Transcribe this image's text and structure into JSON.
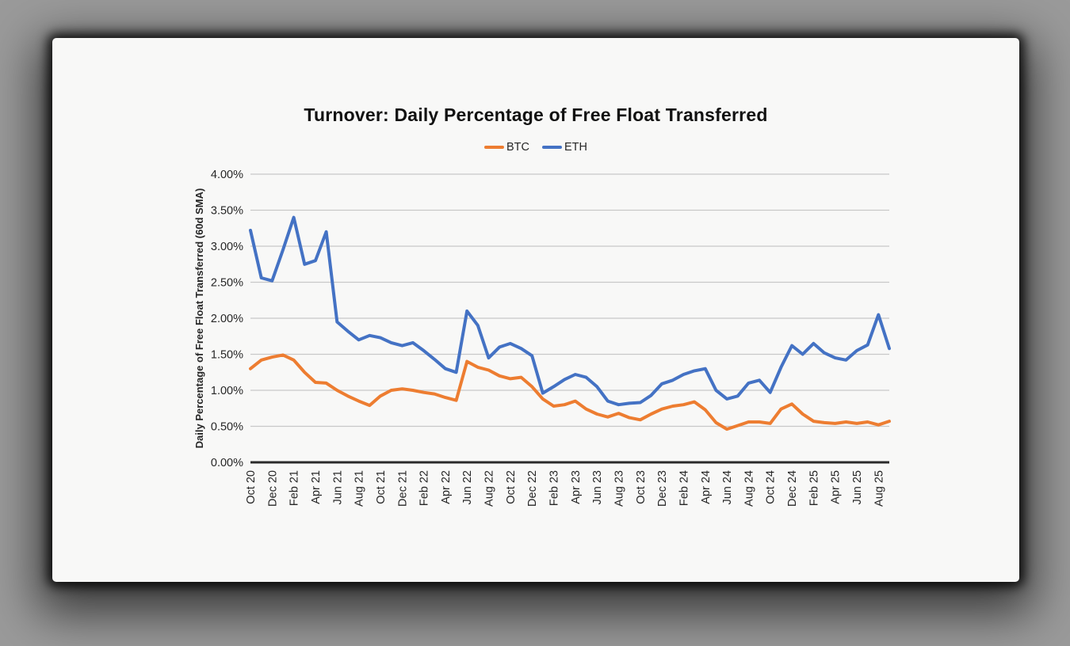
{
  "page": {
    "background_color": "#9a9a9a",
    "card_color": "#f8f8f7",
    "text_color": "#262626",
    "gridline_color": "#c8c8c8",
    "axis_color": "#2b2b2b"
  },
  "chart_data": {
    "type": "line",
    "title": "Turnover: Daily Percentage of Free Float Transferred",
    "ylabel": "Daily Percentage of Free Float Transferred (60d SMA)",
    "xlabel": "",
    "ylim": [
      0,
      4
    ],
    "grid": "horizontal",
    "legend_position": "top-center",
    "line_width": 4,
    "y_ticks": [
      {
        "v": 0.0,
        "label": "0.00%"
      },
      {
        "v": 0.5,
        "label": "0.50%"
      },
      {
        "v": 1.0,
        "label": "1.00%"
      },
      {
        "v": 1.5,
        "label": "1.50%"
      },
      {
        "v": 2.0,
        "label": "2.00%"
      },
      {
        "v": 2.5,
        "label": "2.50%"
      },
      {
        "v": 3.0,
        "label": "3.00%"
      },
      {
        "v": 3.5,
        "label": "3.50%"
      },
      {
        "v": 4.0,
        "label": "4.00%"
      }
    ],
    "x": [
      "Oct 20",
      "Nov 20",
      "Dec 20",
      "Jan 21",
      "Feb 21",
      "Mar 21",
      "Apr 21",
      "May 21",
      "Jun 21",
      "Jul 21",
      "Aug 21",
      "Sep 21",
      "Oct 21",
      "Nov 21",
      "Dec 21",
      "Jan 22",
      "Feb 22",
      "Mar 22",
      "Apr 22",
      "May 22",
      "Jun 22",
      "Jul 22",
      "Aug 22",
      "Sep 22",
      "Oct 22",
      "Nov 22",
      "Dec 22",
      "Jan 23",
      "Feb 23",
      "Mar 23",
      "Apr 23",
      "May 23",
      "Jun 23",
      "Jul 23",
      "Aug 23",
      "Sep 23",
      "Oct 23",
      "Nov 23",
      "Dec 23",
      "Jan 24",
      "Feb 24",
      "Mar 24",
      "Apr 24",
      "May 24",
      "Jun 24",
      "Jul 24",
      "Aug 24",
      "Sep 24",
      "Oct 24",
      "Nov 24",
      "Dec 24",
      "Jan 25",
      "Feb 25",
      "Mar 25",
      "Apr 25",
      "May 25",
      "Jun 25",
      "Jul 25",
      "Aug 25",
      "Sep 25"
    ],
    "x_tick_labels": [
      "Oct 20",
      "Dec 20",
      "Feb 21",
      "Apr 21",
      "Jun 21",
      "Aug 21",
      "Oct 21",
      "Dec 21",
      "Feb 22",
      "Apr 22",
      "Jun 22",
      "Aug 22",
      "Oct 22",
      "Dec 22",
      "Feb 23",
      "Apr 23",
      "Jun 23",
      "Aug 23",
      "Oct 23",
      "Dec 23",
      "Feb 24",
      "Apr 24",
      "Jun 24",
      "Aug 24",
      "Oct 24",
      "Dec 24",
      "Feb 25",
      "Apr 25",
      "Jun 25",
      "Aug 25"
    ],
    "x_tick_step": 2,
    "series": [
      {
        "name": "BTC",
        "color": "#ED7D31",
        "values": [
          1.3,
          1.42,
          1.46,
          1.49,
          1.42,
          1.25,
          1.11,
          1.1,
          1.0,
          0.92,
          0.85,
          0.79,
          0.92,
          1.0,
          1.02,
          1.0,
          0.97,
          0.95,
          0.9,
          0.86,
          1.4,
          1.32,
          1.28,
          1.2,
          1.16,
          1.18,
          1.05,
          0.88,
          0.78,
          0.8,
          0.85,
          0.74,
          0.67,
          0.63,
          0.68,
          0.62,
          0.59,
          0.67,
          0.74,
          0.78,
          0.8,
          0.84,
          0.73,
          0.55,
          0.46,
          0.51,
          0.56,
          0.56,
          0.54,
          0.74,
          0.81,
          0.67,
          0.57,
          0.55,
          0.54,
          0.56,
          0.54,
          0.56,
          0.52,
          0.57
        ]
      },
      {
        "name": "ETH",
        "color": "#4472C4",
        "values": [
          3.22,
          2.56,
          2.52,
          2.95,
          3.4,
          2.75,
          2.8,
          3.2,
          1.95,
          1.82,
          1.7,
          1.76,
          1.73,
          1.66,
          1.62,
          1.66,
          1.55,
          1.43,
          1.3,
          1.25,
          2.1,
          1.9,
          1.45,
          1.6,
          1.65,
          1.58,
          1.48,
          0.96,
          1.05,
          1.15,
          1.22,
          1.18,
          1.05,
          0.85,
          0.8,
          0.82,
          0.83,
          0.93,
          1.09,
          1.14,
          1.22,
          1.27,
          1.3,
          1.0,
          0.88,
          0.92,
          1.1,
          1.14,
          0.97,
          1.32,
          1.62,
          1.5,
          1.65,
          1.52,
          1.45,
          1.42,
          1.55,
          1.63,
          2.05,
          1.58
        ]
      }
    ]
  }
}
